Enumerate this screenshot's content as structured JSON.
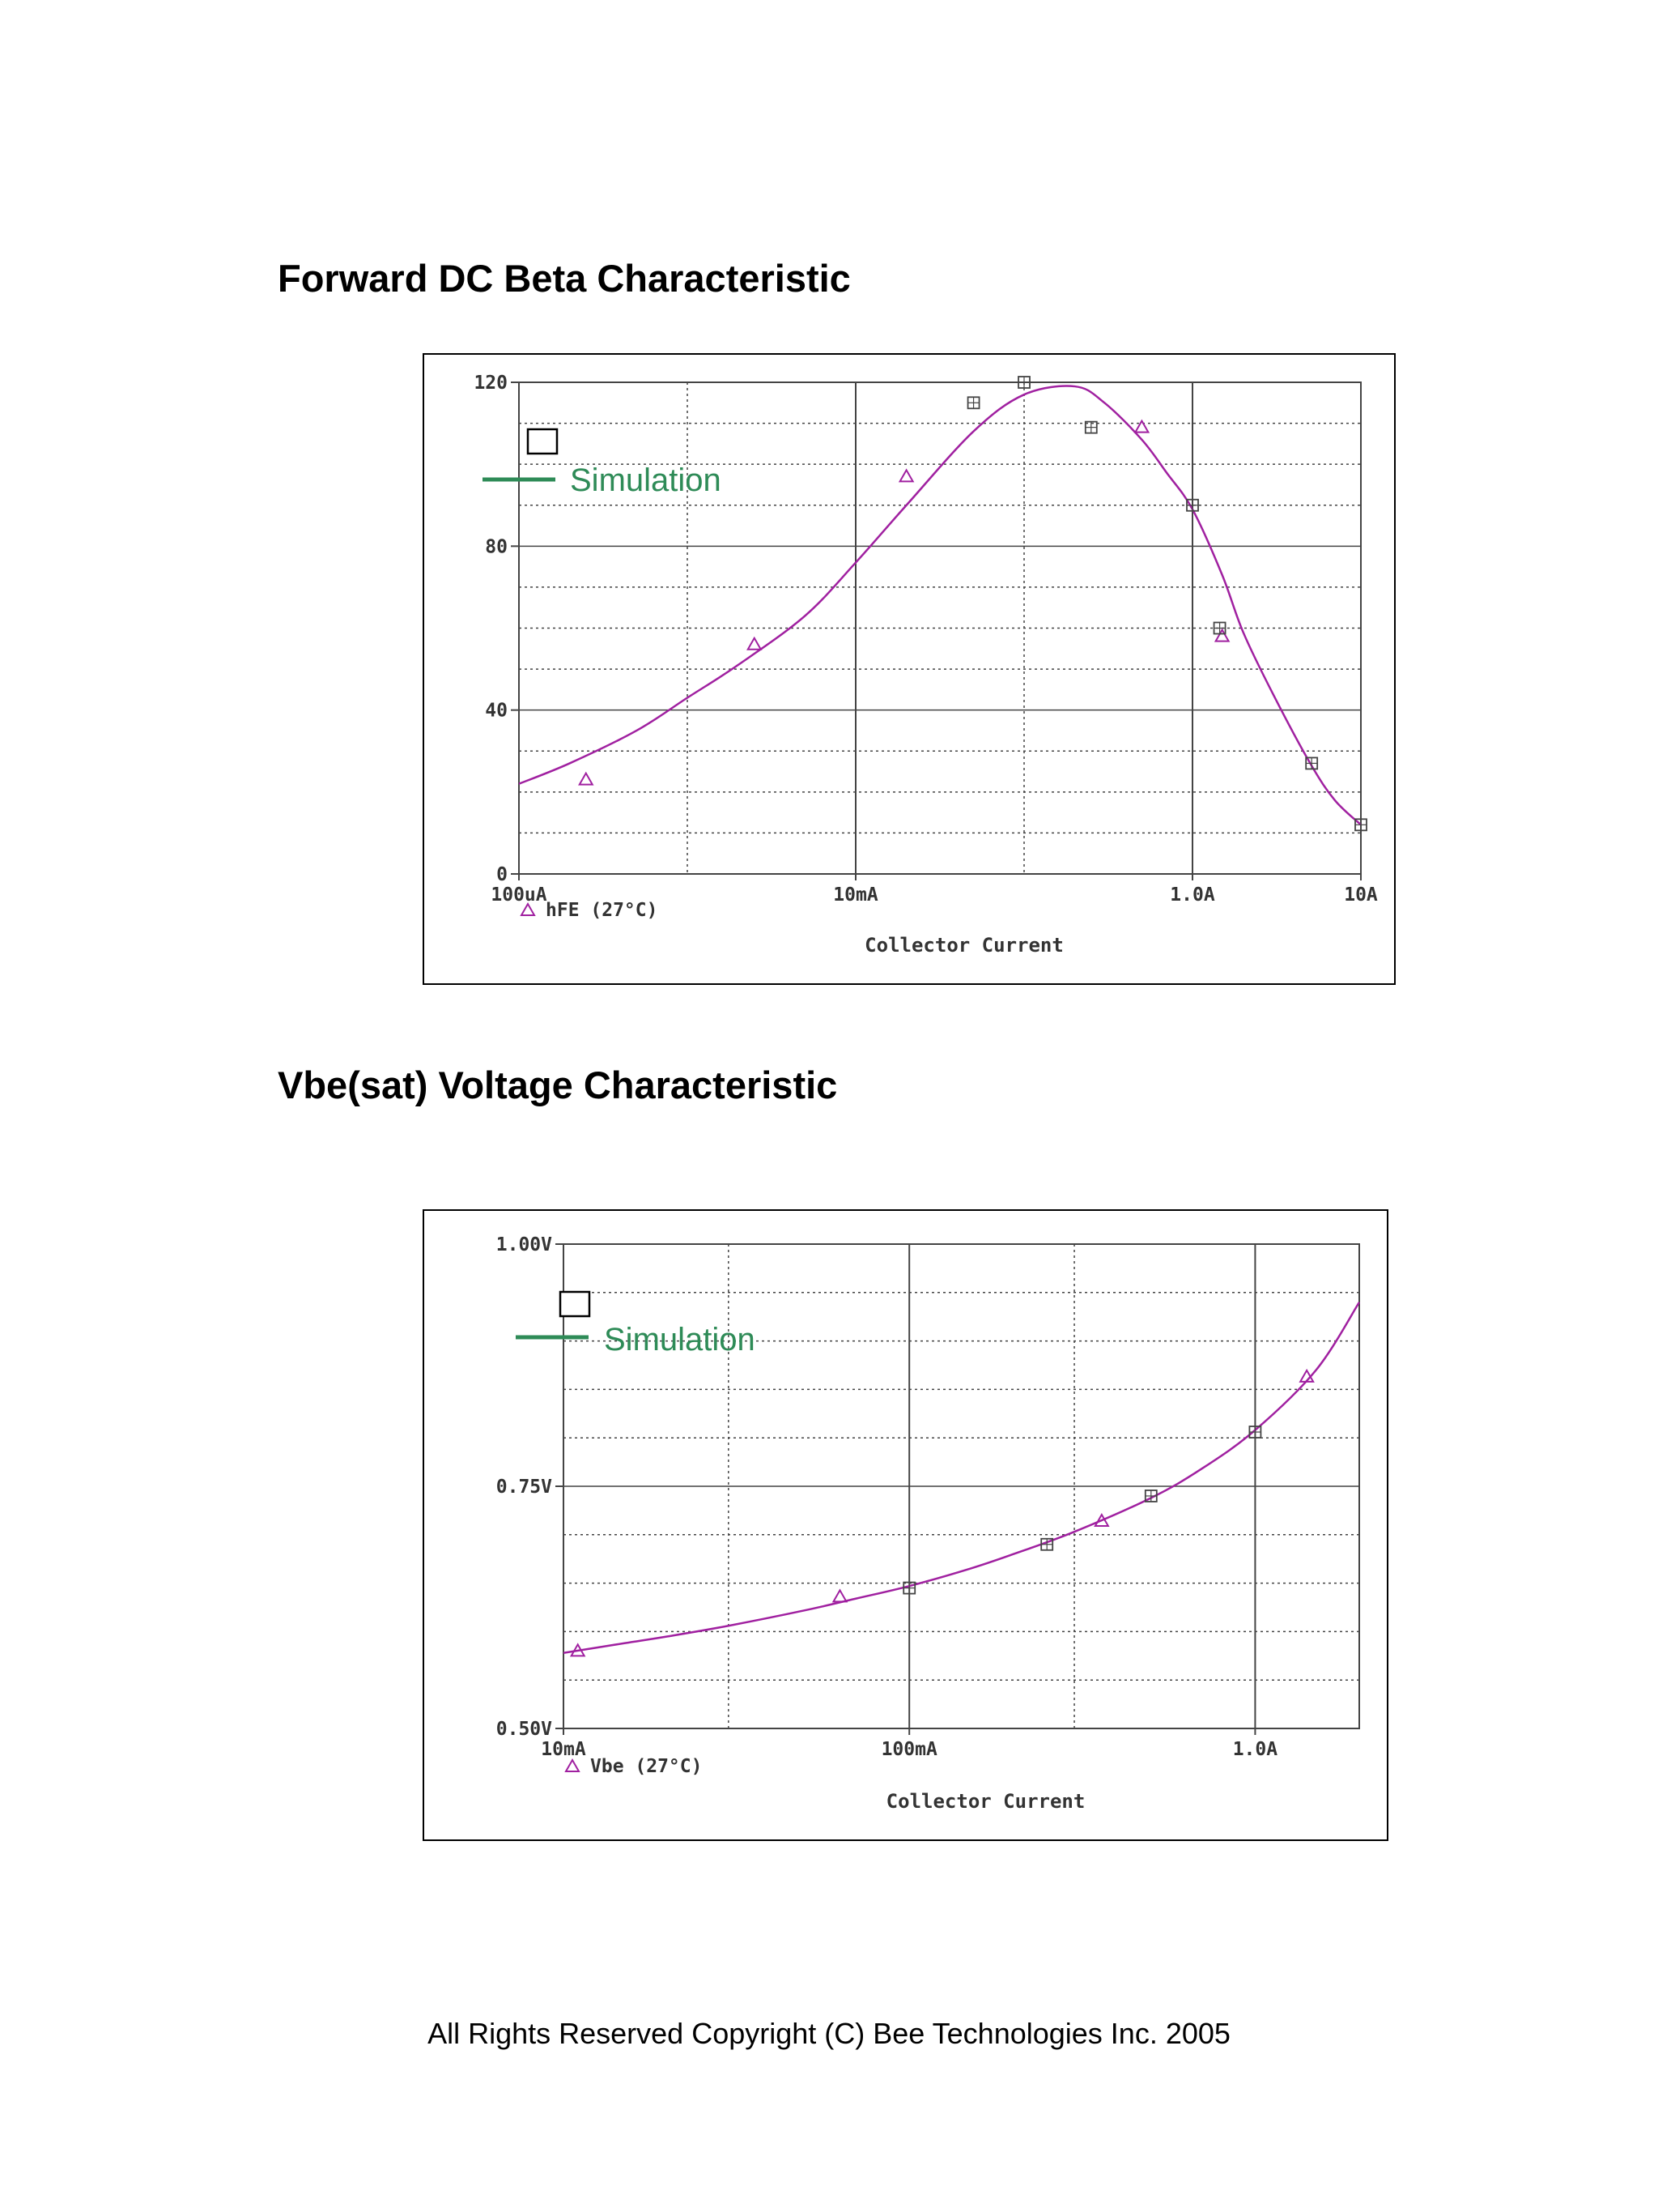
{
  "page": {
    "title1": "Forward DC Beta Characteristic",
    "title2": "Vbe(sat) Voltage Characteristic",
    "copyright": "All Rights Reserved Copyright (C) Bee Technologies Inc. 2005"
  },
  "colors": {
    "curve": "#a020a0",
    "grid": "#444444",
    "legend": "#2e8b57",
    "measurement": "#444444"
  },
  "chart_data": [
    {
      "type": "line",
      "title": "Forward DC Beta Characteristic",
      "xlabel": "Collector Current",
      "ylabel": "",
      "x_scale": "log",
      "xlim": [
        0.0001,
        10
      ],
      "ylim": [
        0,
        120
      ],
      "x_ticks": [
        {
          "value": 0.0001,
          "label": "100uA"
        },
        {
          "value": 0.01,
          "label": "10mA"
        },
        {
          "value": 1,
          "label": "1.0A"
        },
        {
          "value": 10,
          "label": "10A"
        }
      ],
      "x_grid": [
        0.001,
        0.01,
        0.1,
        1,
        10
      ],
      "y_ticks": [
        {
          "value": 0,
          "label": "0"
        },
        {
          "value": 40,
          "label": "40"
        },
        {
          "value": 80,
          "label": "80"
        },
        {
          "value": 120,
          "label": "120"
        }
      ],
      "y_grid_minor": 10,
      "legend": {
        "marker_label": "hFE (27°C)",
        "simulation_label": "Simulation"
      },
      "series": [
        {
          "name": "hFE (27°C)",
          "x": [
            0.0001,
            0.0002,
            0.0005,
            0.001,
            0.002,
            0.005,
            0.01,
            0.02,
            0.05,
            0.1,
            0.2,
            0.3,
            0.5,
            0.7,
            1.0,
            1.5,
            2.0,
            3.0,
            5.0,
            7.0,
            10.0
          ],
          "y": [
            22,
            27,
            35,
            43,
            51,
            63,
            76,
            90,
            108,
            117,
            119,
            115,
            106,
            98,
            89,
            73,
            59,
            44,
            27,
            18,
            12
          ]
        }
      ],
      "simulation_markers": {
        "x": [
          0.02,
          0.00025,
          0.0025,
          0.5,
          1.5
        ],
        "y": [
          97,
          23,
          56,
          109,
          58
        ]
      },
      "measured_markers": {
        "x": [
          0.0501,
          0.1,
          0.25,
          1.0,
          1.45,
          5.1,
          10.0
        ],
        "y": [
          115,
          120,
          109,
          90,
          60,
          27,
          12
        ]
      }
    },
    {
      "type": "line",
      "title": "Vbe(sat) Voltage Characteristic",
      "xlabel": "Collector Current",
      "ylabel": "",
      "x_scale": "log",
      "xlim": [
        0.01,
        2
      ],
      "ylim": [
        0.5,
        1.0
      ],
      "x_ticks": [
        {
          "value": 0.01,
          "label": "10mA"
        },
        {
          "value": 0.1,
          "label": "100mA"
        },
        {
          "value": 1,
          "label": "1.0A"
        }
      ],
      "x_grid": [
        0.03,
        0.1,
        0.3,
        1
      ],
      "y_ticks": [
        {
          "value": 0.5,
          "label": "0.50V"
        },
        {
          "value": 0.75,
          "label": "0.75V"
        },
        {
          "value": 1.0,
          "label": "1.00V"
        }
      ],
      "y_grid_minor": 0.05,
      "legend": {
        "marker_label": "Vbe (27°C)",
        "simulation_label": "Simulation"
      },
      "series": [
        {
          "name": "Vbe (27°C)",
          "x": [
            0.01,
            0.015,
            0.02,
            0.03,
            0.05,
            0.07,
            0.1,
            0.15,
            0.2,
            0.3,
            0.5,
            0.7,
            1.0,
            1.5,
            2.0
          ],
          "y": [
            0.578,
            0.588,
            0.595,
            0.606,
            0.622,
            0.634,
            0.647,
            0.665,
            0.68,
            0.703,
            0.738,
            0.768,
            0.808,
            0.87,
            0.94
          ]
        }
      ],
      "simulation_markers": {
        "x": [
          0.011,
          0.063,
          0.36,
          1.41
        ],
        "y": [
          0.58,
          0.636,
          0.714,
          0.863
        ]
      },
      "measured_markers": {
        "x": [
          0.1,
          0.25,
          0.5,
          1.0
        ],
        "y": [
          0.645,
          0.69,
          0.74,
          0.806
        ]
      }
    }
  ]
}
